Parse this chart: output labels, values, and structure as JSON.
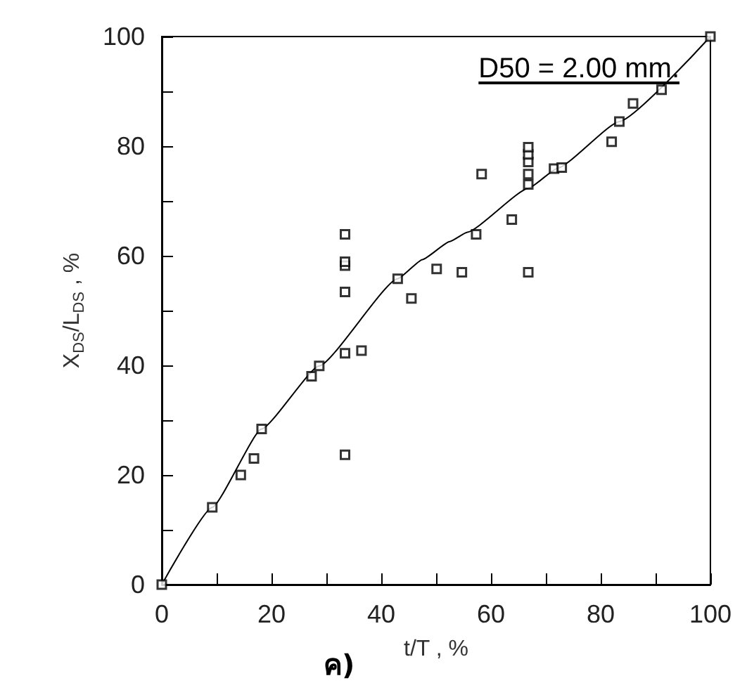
{
  "chart_data": {
    "type": "scatter",
    "xlabel": "t/T , %",
    "ylabel": "X$_{DS}$/L$_{DS}$ , %",
    "annotations": [
      "D50 = 2.00 mm.",
      "ค)"
    ],
    "xlim": [
      0,
      100
    ],
    "ylim": [
      0,
      100
    ],
    "xticks": [
      0,
      {
        "value": 10,
        "label": null
      },
      20,
      {
        "value": 30,
        "label": null
      },
      40,
      {
        "value": 50,
        "label": null
      },
      60,
      {
        "value": 70,
        "label": null
      },
      80,
      {
        "value": 90,
        "label": null
      },
      100
    ],
    "yticks": [
      0,
      {
        "value": 10,
        "label": null
      },
      20,
      {
        "value": 30,
        "label": null
      },
      40,
      {
        "value": 50,
        "label": null
      },
      60,
      {
        "value": 70,
        "label": null
      },
      80,
      {
        "value": 90,
        "label": null
      },
      100
    ],
    "grid": false,
    "marker": "square",
    "series": [
      {
        "color": "#000000",
        "x": [
          0,
          9.2,
          14.4,
          16.8,
          18.2,
          27.3,
          28.7,
          33.4,
          33.4,
          36.4,
          33.4,
          33.4,
          33.4,
          33.4,
          43,
          45.5,
          50.1,
          54.7,
          57.3,
          58.3,
          63.8,
          66.8,
          66.8,
          66.8,
          66.8,
          66.8,
          66.8,
          71.5,
          72.9,
          82,
          83.4,
          85.9,
          91.1,
          100
        ],
        "values": [
          0,
          14.1,
          20,
          23,
          28.4,
          38,
          39.9,
          23.7,
          42.2,
          42.7,
          53.4,
          58.2,
          58.9,
          63.9,
          55.8,
          52.2,
          57.6,
          57,
          63.9,
          74.9,
          66.6,
          57,
          73,
          74.9,
          77.1,
          78.5,
          79.8,
          75.9,
          76.1,
          80.8,
          84.5,
          87.8,
          90.3,
          100
        ]
      },
      {
        "type": "line",
        "color": "#000000",
        "marker": "none",
        "x": [
          0,
          9.2,
          18.2,
          28.7,
          43,
          47.5,
          52.5,
          55.7,
          66.8,
          72.2,
          83.4,
          100
        ],
        "values": [
          0,
          14.1,
          28.4,
          39.9,
          55.8,
          59.3,
          62.6,
          64.3,
          72.3,
          76,
          84.5,
          100
        ]
      }
    ]
  }
}
